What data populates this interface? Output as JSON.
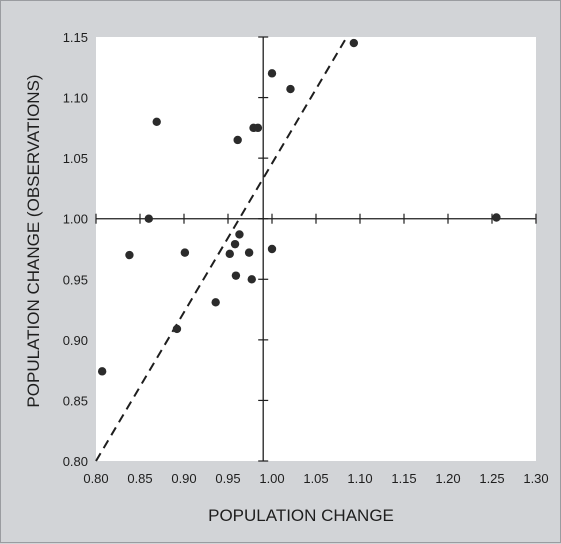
{
  "chart_data": {
    "type": "scatter",
    "title": "",
    "xlabel": "POPULATION CHANGE",
    "ylabel": "POPULATION CHANGE (OBSERVATIONS)",
    "xlim": [
      0.8,
      1.3
    ],
    "ylim": [
      0.8,
      1.15
    ],
    "x_ticks": [
      "0.80",
      "0.85",
      "0.90",
      "0.95",
      "1.00",
      "1.05",
      "1.10",
      "1.15",
      "1.20",
      "1.25",
      "1.30"
    ],
    "y_ticks": [
      "0.80",
      "0.85",
      "0.90",
      "0.95",
      "1.00",
      "1.05",
      "1.10",
      "1.15"
    ],
    "crosshair": {
      "x": 0.99,
      "y": 1.0
    },
    "reference_line": {
      "style": "dashed",
      "points": [
        [
          0.8,
          0.8
        ],
        [
          1.085,
          1.15
        ]
      ]
    },
    "grid": false,
    "legend": "none",
    "colors": {
      "background": "#d2d4d7",
      "plot_area": "#ffffff",
      "marker": "#2b2b2b",
      "line": "#1e1e1e"
    },
    "points": [
      {
        "x": 0.807,
        "y": 0.874
      },
      {
        "x": 0.838,
        "y": 0.97
      },
      {
        "x": 0.86,
        "y": 1.0
      },
      {
        "x": 0.869,
        "y": 1.08
      },
      {
        "x": 0.892,
        "y": 0.909
      },
      {
        "x": 0.901,
        "y": 0.972
      },
      {
        "x": 0.936,
        "y": 0.931
      },
      {
        "x": 0.952,
        "y": 0.971
      },
      {
        "x": 0.958,
        "y": 0.979
      },
      {
        "x": 0.959,
        "y": 0.953
      },
      {
        "x": 0.961,
        "y": 1.065
      },
      {
        "x": 0.963,
        "y": 0.987
      },
      {
        "x": 0.974,
        "y": 0.972
      },
      {
        "x": 0.977,
        "y": 0.95
      },
      {
        "x": 0.979,
        "y": 1.075
      },
      {
        "x": 0.984,
        "y": 1.075
      },
      {
        "x": 1.0,
        "y": 0.975
      },
      {
        "x": 1.0,
        "y": 1.12
      },
      {
        "x": 1.021,
        "y": 1.107
      },
      {
        "x": 1.093,
        "y": 1.145
      },
      {
        "x": 1.255,
        "y": 1.001
      }
    ]
  }
}
